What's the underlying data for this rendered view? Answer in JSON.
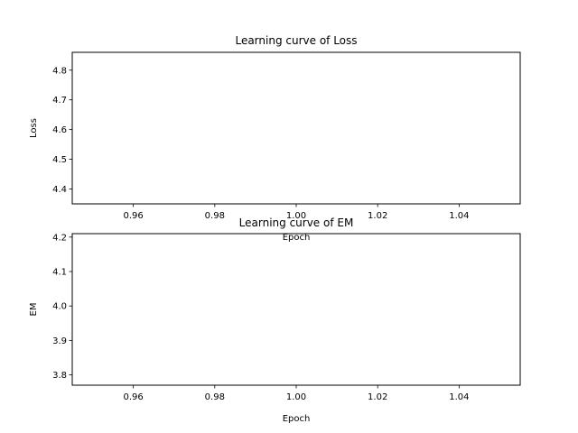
{
  "chart_data": [
    {
      "type": "line",
      "title": "Learning curve of Loss",
      "xlabel": "Epoch",
      "ylabel": "Loss",
      "xlim": [
        0.945,
        1.055
      ],
      "ylim": [
        4.35,
        4.86
      ],
      "x_ticks": [
        "0.96",
        "0.98",
        "1.00",
        "1.02",
        "1.04"
      ],
      "y_ticks": [
        "4.4",
        "4.5",
        "4.6",
        "4.7",
        "4.8"
      ],
      "series": [],
      "grid": false
    },
    {
      "type": "line",
      "title": "Learning curve of EM",
      "xlabel": "Epoch",
      "ylabel": "EM",
      "xlim": [
        0.945,
        1.055
      ],
      "ylim": [
        3.77,
        4.21
      ],
      "x_ticks": [
        "0.96",
        "0.98",
        "1.00",
        "1.02",
        "1.04"
      ],
      "y_ticks": [
        "3.8",
        "3.9",
        "4.0",
        "4.1",
        "4.2"
      ],
      "series": [],
      "grid": false
    }
  ]
}
